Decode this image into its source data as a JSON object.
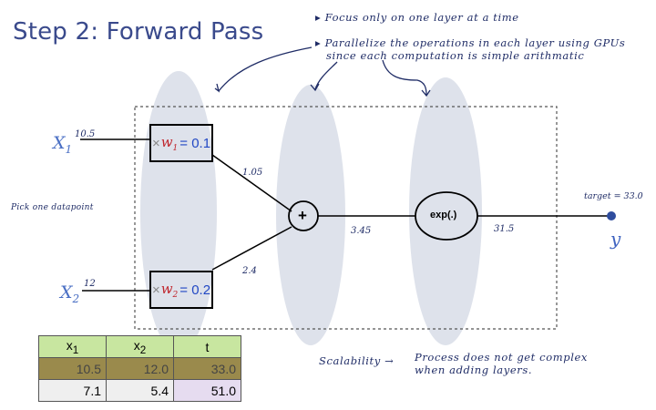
{
  "title": "Step 2: Forward Pass",
  "notes": {
    "focus": "▸ Focus only on one layer at a time",
    "parallel_line1": "▸ Parallelize the operations in each layer using GPUs",
    "parallel_line2": "since each computation is simple arithmatic",
    "pick": "Pick one datapoint",
    "scalability_left": "Scalability →",
    "scalability_line1": "Process does not get complex",
    "scalability_line2": "when adding layers."
  },
  "inputs": {
    "x1_name": "X",
    "x1_sub": "1",
    "x1_value": "10.5",
    "x2_name": "X",
    "x2_sub": "2",
    "x2_value": "12"
  },
  "weights": {
    "w1_label": "w",
    "w1_sub": "1",
    "w1_value": "= 0.1",
    "w2_label": "w",
    "w2_sub": "2",
    "w2_value": "= 0.2",
    "cross": "×"
  },
  "edges": {
    "w1_out": "1.05",
    "w2_out": "2.4",
    "sum_out": "3.45",
    "exp_out": "31.5"
  },
  "nodes": {
    "sum": "+",
    "exp": "exp(.)"
  },
  "output": {
    "target_label": "target = 33.0",
    "y": "y"
  },
  "table": {
    "headers": [
      "x1",
      "x2",
      "t"
    ],
    "rows": [
      [
        "10.5",
        "12.0",
        "33.0"
      ],
      [
        "7.1",
        "5.4",
        "51.0"
      ]
    ]
  }
}
